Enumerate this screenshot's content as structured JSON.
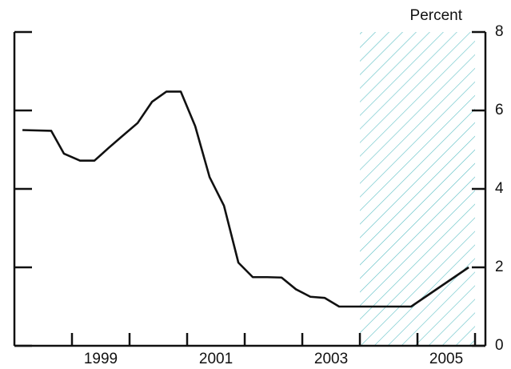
{
  "chart_data": {
    "type": "line",
    "y_label": "Percent",
    "x": [
      1998.14,
      1998.64,
      1998.86,
      1999.14,
      1999.39,
      1999.64,
      1999.86,
      2000.14,
      2000.39,
      2000.64,
      2000.89,
      2001.14,
      2001.39,
      2001.64,
      2001.89,
      2002.14,
      2002.39,
      2002.64,
      2002.89,
      2003.14,
      2003.39,
      2003.64,
      2003.89,
      2004.14,
      2004.39,
      2004.64,
      2004.89,
      2005.14,
      2005.39,
      2005.64,
      2005.89
    ],
    "values": [
      5.5,
      5.48,
      4.9,
      4.72,
      4.72,
      5.05,
      5.33,
      5.68,
      6.22,
      6.48,
      6.48,
      5.6,
      4.3,
      3.57,
      2.12,
      1.75,
      1.75,
      1.74,
      1.44,
      1.25,
      1.22,
      1.0,
      1.0,
      1.0,
      1.0,
      1.0,
      1.0,
      1.25,
      1.5,
      1.75,
      2.0
    ],
    "color": "#111111",
    "xlim": [
      1998,
      2006.18
    ],
    "xticks": [
      {
        "value": 1999.5,
        "label": "1999"
      },
      {
        "value": 2001.5,
        "label": "2001"
      },
      {
        "value": 2003.5,
        "label": "2003"
      },
      {
        "value": 2005.5,
        "label": "2005"
      }
    ],
    "x_minor_ticks": [
      1999,
      2000,
      2001,
      2002,
      2003,
      2004,
      2005,
      2006
    ],
    "ylim": [
      0,
      8
    ],
    "yticks": [
      0,
      2,
      4,
      6,
      8
    ],
    "shaded_x_range": [
      2004,
      2006
    ],
    "shade_color": "#5bbfc4"
  }
}
